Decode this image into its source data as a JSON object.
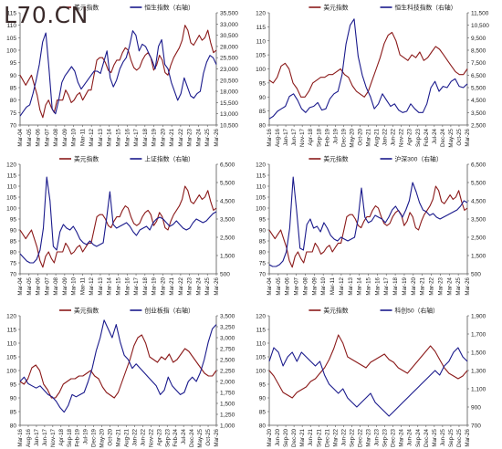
{
  "watermark": "L70.CN",
  "colors": {
    "usd": "#8B1A1A",
    "equity": "#1A1A8C",
    "axis": "#555555",
    "text": "#222222"
  },
  "chart_data": [
    {
      "type": "line",
      "legend": [
        "美元指数",
        "恒生指数（右轴）"
      ],
      "left_ylim": [
        70,
        115
      ],
      "left_ticks": [
        70,
        75,
        80,
        85,
        90,
        95,
        100,
        105,
        110,
        115
      ],
      "right_ylim": [
        10500,
        35500
      ],
      "right_ticks": [
        "10,500",
        "13,000",
        "15,500",
        "18,000",
        "20,500",
        "23,000",
        "25,500",
        "28,000",
        "30,500",
        "33,000",
        "35,500"
      ],
      "x_ticks": [
        "Mar-04",
        "Mar-05",
        "Mar-06",
        "Mar-07",
        "Mar-08",
        "Mar-09",
        "Mar-10",
        "Mar-11",
        "Mar-12",
        "Mar-13",
        "Mar-14",
        "Mar-15",
        "Mar-16",
        "Mar-17",
        "Mar-18",
        "Mar-19",
        "Mar-20",
        "Mar-21",
        "Mar-22",
        "Mar-23",
        "Mar-24",
        "Mar-25",
        "Mar-26"
      ],
      "series": [
        {
          "name": "美元指数",
          "axis": "left",
          "values": [
            90,
            88,
            86,
            88,
            90,
            86,
            82,
            76,
            73,
            78,
            80,
            77,
            75,
            80,
            80,
            80,
            84,
            82,
            79,
            80,
            82,
            83,
            80,
            82,
            84,
            84,
            90,
            96,
            97,
            97,
            95,
            92,
            91,
            94,
            96,
            96,
            99,
            101,
            100,
            96,
            93,
            92,
            93,
            96,
            98,
            99,
            97,
            92,
            94,
            98,
            96,
            91,
            90,
            94,
            97,
            99,
            101,
            104,
            110,
            108,
            103,
            102,
            104,
            106,
            104,
            105,
            108,
            103,
            99,
            100
          ]
        },
        {
          "name": "恒生指数（右轴）",
          "axis": "right",
          "values": [
            12500,
            13500,
            14500,
            15000,
            17500,
            20500,
            24000,
            29000,
            31000,
            23000,
            14000,
            13000,
            16000,
            20000,
            21500,
            22500,
            23500,
            22500,
            20000,
            18500,
            19500,
            20500,
            21500,
            22500,
            22500,
            22000,
            24500,
            27000,
            21000,
            19000,
            20500,
            23000,
            24500,
            25500,
            28000,
            31500,
            30500,
            27000,
            28500,
            28000,
            26500,
            25000,
            23000,
            28000,
            29500,
            24000,
            23000,
            20000,
            18000,
            16000,
            17500,
            21000,
            19000,
            17000,
            16500,
            17500,
            18000,
            22000,
            24500,
            26000,
            25500,
            24000
          ]
        }
      ]
    },
    {
      "type": "line",
      "legend": [
        "美元指数",
        "恒生科技指数（右轴）"
      ],
      "left_ylim": [
        80,
        120
      ],
      "left_ticks": [
        80,
        85,
        90,
        95,
        100,
        105,
        110,
        115,
        120
      ],
      "right_ylim": [
        2500,
        11500
      ],
      "right_ticks": [
        "2,500",
        "3,500",
        "4,500",
        "5,500",
        "6,500",
        "7,500",
        "8,500",
        "9,500",
        "10,500",
        "11,500"
      ],
      "x_ticks": [
        "Mar-16",
        "Aug-16",
        "Jan-17",
        "Jun-17",
        "Nov-17",
        "Apr-18",
        "Sep-18",
        "Feb-19",
        "Jul-19",
        "Dec-19",
        "May-20",
        "Oct-20",
        "Mar-21",
        "Aug-21",
        "Jan-22",
        "Jun-22",
        "Nov-22",
        "Apr-23",
        "Sep-23",
        "Feb-24",
        "Jul-24",
        "Dec-24",
        "May-25",
        "Oct-25",
        "Mar-26"
      ],
      "series": [
        {
          "name": "美元指数",
          "axis": "left",
          "values": [
            96,
            95,
            97,
            101,
            102,
            100,
            95,
            93,
            90,
            90,
            92,
            95,
            96,
            97,
            97,
            98,
            98,
            99,
            100,
            98,
            97,
            94,
            92,
            91,
            90,
            92,
            96,
            100,
            104,
            109,
            112,
            113,
            110,
            105,
            104,
            103,
            105,
            104,
            106,
            103,
            104,
            106,
            108,
            107,
            105,
            103,
            101,
            99,
            98,
            98,
            100
          ]
        },
        {
          "name": "恒生科技指数（右轴）",
          "axis": "right",
          "values": [
            3000,
            3200,
            3600,
            3800,
            4000,
            4800,
            5000,
            4500,
            3800,
            3500,
            3900,
            4000,
            4300,
            3700,
            3800,
            4600,
            5000,
            5200,
            6500,
            9000,
            10500,
            11000,
            8000,
            6500,
            5500,
            4800,
            3800,
            4200,
            5000,
            4500,
            4000,
            4200,
            3700,
            3500,
            3600,
            4200,
            3800,
            3500,
            3500,
            4200,
            5500,
            6000,
            5200,
            5600,
            5500,
            6000,
            6200,
            5600,
            5500,
            5800
          ]
        }
      ]
    },
    {
      "type": "line",
      "legend": [
        "美元指数",
        "上证指数（右轴）"
      ],
      "left_ylim": [
        70,
        120
      ],
      "left_ticks": [
        70,
        75,
        80,
        85,
        90,
        95,
        100,
        105,
        110,
        115,
        120
      ],
      "right_ylim": [
        500,
        6500
      ],
      "right_ticks": [
        "500",
        "1,500",
        "2,500",
        "3,500",
        "4,500",
        "5,500",
        "6,500"
      ],
      "x_ticks": [
        "Mar-04",
        "Mar-05",
        "Mar-06",
        "Mar-07",
        "Mar-08",
        "Mar-09",
        "Mar-10",
        "Mar-11",
        "Mar-12",
        "Mar-13",
        "Mar-14",
        "Mar-15",
        "Mar-16",
        "Mar-17",
        "Mar-18",
        "Mar-19",
        "Mar-20",
        "Mar-21",
        "Mar-22",
        "Mar-23",
        "Mar-24",
        "Mar-25",
        "Mar-26"
      ],
      "series": [
        {
          "name": "美元指数",
          "axis": "left",
          "values": [
            90,
            88,
            86,
            88,
            90,
            86,
            82,
            76,
            73,
            78,
            80,
            77,
            75,
            80,
            80,
            80,
            84,
            82,
            79,
            80,
            82,
            83,
            80,
            82,
            84,
            84,
            90,
            96,
            97,
            97,
            95,
            92,
            91,
            94,
            96,
            96,
            99,
            101,
            100,
            96,
            93,
            92,
            93,
            96,
            98,
            99,
            97,
            92,
            94,
            98,
            96,
            91,
            90,
            94,
            97,
            99,
            101,
            104,
            110,
            108,
            103,
            102,
            104,
            106,
            104,
            105,
            108,
            103,
            99,
            100
          ]
        },
        {
          "name": "上证指数（右轴）",
          "axis": "right",
          "values": [
            1600,
            1400,
            1200,
            1100,
            1100,
            1300,
            1800,
            3000,
            5800,
            4500,
            2000,
            1800,
            2800,
            3200,
            3000,
            2900,
            3100,
            2800,
            2400,
            2200,
            2100,
            2300,
            2100,
            2000,
            2100,
            2200,
            3500,
            5000,
            3200,
            3000,
            3100,
            3200,
            3300,
            3100,
            2800,
            2600,
            2900,
            3000,
            3100,
            2900,
            3300,
            3500,
            3600,
            3500,
            3300,
            3100,
            3200,
            3400,
            3200,
            3000,
            2900,
            3000,
            3300,
            3500,
            3400,
            3300,
            3400,
            3600,
            3800,
            3900
          ]
        }
      ]
    },
    {
      "type": "line",
      "legend": [
        "美元指数",
        "沪深300（右轴）"
      ],
      "left_ylim": [
        70,
        120
      ],
      "left_ticks": [
        70,
        75,
        80,
        85,
        90,
        95,
        100,
        105,
        110,
        115,
        120
      ],
      "right_ylim": [
        500,
        6500
      ],
      "right_ticks": [
        "500",
        "1,500",
        "2,500",
        "3,500",
        "4,500",
        "5,500",
        "6,500"
      ],
      "x_ticks": [
        "Mar-04",
        "Mar-05",
        "Mar-06",
        "Mar-07",
        "Mar-08",
        "Mar-09",
        "Mar-10",
        "Mar-11",
        "Mar-12",
        "Mar-13",
        "Mar-14",
        "Mar-15",
        "Mar-16",
        "Mar-17",
        "Mar-18",
        "Mar-19",
        "Mar-20",
        "Mar-21",
        "Mar-22",
        "Mar-23",
        "Mar-24",
        "Mar-25",
        "Mar-26"
      ],
      "series": [
        {
          "name": "美元指数",
          "axis": "left",
          "values": [
            90,
            88,
            86,
            88,
            90,
            86,
            82,
            76,
            73,
            78,
            80,
            77,
            75,
            80,
            80,
            80,
            84,
            82,
            79,
            80,
            82,
            83,
            80,
            82,
            84,
            84,
            90,
            96,
            97,
            97,
            95,
            92,
            91,
            94,
            96,
            96,
            99,
            101,
            100,
            96,
            93,
            92,
            93,
            96,
            98,
            99,
            97,
            92,
            94,
            98,
            96,
            91,
            90,
            94,
            97,
            99,
            101,
            104,
            110,
            108,
            103,
            102,
            104,
            106,
            104,
            105,
            108,
            103,
            99,
            100
          ]
        },
        {
          "name": "沪深300（右轴）",
          "axis": "right",
          "values": [
            1000,
            900,
            900,
            1000,
            1200,
            1700,
            3000,
            5800,
            4000,
            1900,
            1800,
            3200,
            3500,
            3000,
            3100,
            2800,
            3300,
            3000,
            2600,
            2400,
            2300,
            2500,
            2400,
            2300,
            2400,
            2500,
            3500,
            5200,
            3600,
            3300,
            3400,
            3700,
            3600,
            3500,
            3300,
            3600,
            4000,
            4200,
            3900,
            3600,
            4000,
            4500,
            5500,
            5000,
            4400,
            4000,
            3900,
            3700,
            3800,
            3600,
            3500,
            3600,
            3700,
            3800,
            3900,
            4000,
            4200,
            4500,
            4400
          ]
        }
      ]
    },
    {
      "type": "line",
      "legend": [
        "美元指数",
        "创业板指（右轴）"
      ],
      "left_ylim": [
        80,
        120
      ],
      "left_ticks": [
        80,
        85,
        90,
        95,
        100,
        105,
        110,
        115,
        120
      ],
      "right_ylim": [
        1000,
        3500
      ],
      "right_ticks": [
        "1,000",
        "1,250",
        "1,500",
        "1,750",
        "2,000",
        "2,250",
        "2,500",
        "2,750",
        "3,000",
        "3,250",
        "3,500"
      ],
      "x_ticks": [
        "Mar-16",
        "Aug-16",
        "Jan-17",
        "Jun-17",
        "Nov-17",
        "Apr-18",
        "Sep-18",
        "Feb-19",
        "Jul-19",
        "Dec-19",
        "May-20",
        "Oct-20",
        "Mar-21",
        "Aug-21",
        "Jan-22",
        "Jun-22",
        "Nov-22",
        "Apr-23",
        "Sep-23",
        "Feb-24",
        "Jul-24",
        "Dec-24",
        "May-25",
        "Oct-25",
        "Mar-26"
      ],
      "series": [
        {
          "name": "美元指数",
          "axis": "left",
          "values": [
            96,
            95,
            97,
            101,
            102,
            100,
            95,
            93,
            90,
            90,
            92,
            95,
            96,
            97,
            97,
            98,
            98,
            99,
            100,
            98,
            97,
            94,
            92,
            91,
            90,
            92,
            96,
            100,
            104,
            109,
            112,
            113,
            110,
            105,
            104,
            103,
            105,
            104,
            106,
            103,
            104,
            106,
            108,
            107,
            105,
            103,
            101,
            99,
            98,
            98,
            100
          ]
        },
        {
          "name": "创业板指（右轴）",
          "axis": "right",
          "values": [
            2000,
            2100,
            1950,
            1900,
            1850,
            1900,
            1800,
            1700,
            1650,
            1550,
            1400,
            1300,
            1450,
            1700,
            1650,
            1700,
            1750,
            2000,
            2300,
            2700,
            3000,
            3400,
            3200,
            3000,
            3300,
            2900,
            2600,
            2500,
            2300,
            2400,
            2300,
            2200,
            2100,
            2000,
            1900,
            1700,
            1800,
            2100,
            1900,
            1800,
            1700,
            1750,
            2000,
            2100,
            2000,
            2200,
            2500,
            2900,
            3200,
            3300
          ]
        }
      ]
    },
    {
      "type": "line",
      "legend": [
        "美元指数",
        "科创50（右轴）"
      ],
      "left_ylim": [
        80,
        120
      ],
      "left_ticks": [
        80,
        85,
        90,
        95,
        100,
        105,
        110,
        115,
        120
      ],
      "right_ylim": [
        700,
        1900
      ],
      "right_ticks": [
        "700",
        "900",
        "1,100",
        "1,300",
        "1,500",
        "1,700",
        "1,900"
      ],
      "x_ticks": [
        "Mar-20",
        "Jun-20",
        "Sep-20",
        "Dec-20",
        "Mar-21",
        "Jun-21",
        "Sep-21",
        "Dec-21",
        "Mar-22",
        "Jun-22",
        "Sep-22",
        "Dec-22",
        "Mar-23",
        "Jun-23",
        "Sep-23",
        "Dec-23",
        "Mar-24",
        "Jun-24",
        "Sep-24",
        "Dec-24",
        "Mar-25",
        "Jun-25",
        "Sep-25",
        "Dec-25",
        "Mar-26"
      ],
      "series": [
        {
          "name": "美元指数",
          "axis": "left",
          "values": [
            100,
            98,
            95,
            92,
            91,
            90,
            92,
            93,
            94,
            96,
            97,
            99,
            101,
            104,
            108,
            113,
            110,
            105,
            104,
            103,
            102,
            101,
            103,
            104,
            105,
            106,
            104,
            103,
            101,
            100,
            99,
            101,
            103,
            105,
            107,
            109,
            107,
            104,
            101,
            99,
            98,
            97,
            98,
            100
          ]
        },
        {
          "name": "科创50（右轴）",
          "axis": "right",
          "values": [
            1400,
            1550,
            1500,
            1350,
            1450,
            1500,
            1400,
            1500,
            1450,
            1400,
            1350,
            1400,
            1250,
            1150,
            1100,
            1050,
            1100,
            1000,
            950,
            900,
            950,
            1000,
            1050,
            950,
            900,
            850,
            800,
            850,
            900,
            950,
            1000,
            1050,
            1100,
            1150,
            1200,
            1250,
            1300,
            1250,
            1350,
            1400,
            1500,
            1550,
            1450,
            1400
          ]
        }
      ]
    }
  ]
}
